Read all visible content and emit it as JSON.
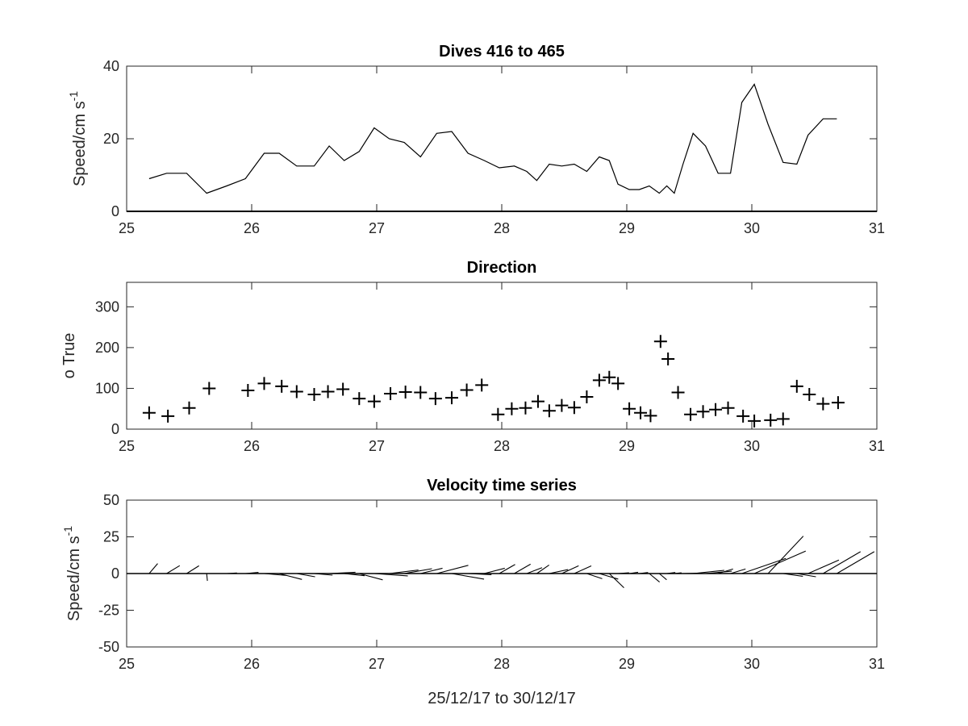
{
  "chart_data": [
    {
      "type": "line",
      "title": "Dives 416 to 465",
      "ylabel_main": "Speed/cm s",
      "ylabel_sup": "-1",
      "xlabel": "",
      "xlim": [
        25,
        31
      ],
      "ylim": [
        0,
        40
      ],
      "xticks": [
        25,
        26,
        27,
        28,
        29,
        30,
        31
      ],
      "yticks": [
        0,
        20,
        40
      ],
      "series": [
        {
          "x": [
            25.18,
            25.32,
            25.48,
            25.64,
            25.8,
            25.95,
            26.1,
            26.22,
            26.36,
            26.5,
            26.62,
            26.74,
            26.86,
            26.98,
            27.1,
            27.22,
            27.35,
            27.48,
            27.6,
            27.73,
            27.86,
            27.98,
            28.1,
            28.2,
            28.28,
            28.38,
            28.48,
            28.58,
            28.68,
            28.78,
            28.86,
            28.93,
            29.02,
            29.1,
            29.18,
            29.26,
            29.32,
            29.38,
            29.45,
            29.53,
            29.63,
            29.73,
            29.83,
            29.92,
            30.02,
            30.13,
            30.25,
            30.36,
            30.45,
            30.57,
            30.68
          ],
          "y": [
            9,
            10.5,
            10.5,
            5,
            7,
            9,
            16,
            16,
            12.5,
            12.5,
            18,
            14,
            16.5,
            23,
            20,
            19,
            15,
            21.5,
            22,
            16,
            14,
            12,
            12.5,
            11,
            8.5,
            13,
            12.5,
            13,
            11,
            15,
            14,
            7.5,
            6,
            6,
            7,
            5,
            7,
            5,
            13,
            21.5,
            18,
            10.5,
            10.5,
            30,
            35,
            24,
            13.5,
            13,
            21,
            25.5,
            25.5
          ]
        }
      ]
    },
    {
      "type": "scatter",
      "title": "Direction",
      "ylabel": "o True",
      "xlim": [
        25,
        31
      ],
      "ylim": [
        0,
        360
      ],
      "xticks": [
        25,
        26,
        27,
        28,
        29,
        30,
        31
      ],
      "yticks": [
        0,
        100,
        200,
        300
      ],
      "marker": "+",
      "x": [
        25.18,
        25.33,
        25.5,
        25.66,
        25.97,
        26.1,
        26.24,
        26.36,
        26.5,
        26.61,
        26.73,
        26.86,
        26.98,
        27.11,
        27.23,
        27.35,
        27.47,
        27.6,
        27.72,
        27.84,
        27.97,
        28.08,
        28.19,
        28.29,
        28.38,
        28.48,
        28.58,
        28.68,
        28.78,
        28.86,
        28.93,
        29.02,
        29.11,
        29.19,
        29.27,
        29.33,
        29.41,
        29.51,
        29.61,
        29.71,
        29.81,
        29.93,
        30.02,
        30.15,
        30.25,
        30.36,
        30.46,
        30.57,
        30.69
      ],
      "y": [
        40,
        32,
        52,
        100,
        95,
        112,
        105,
        92,
        85,
        92,
        98,
        75,
        68,
        87,
        91,
        90,
        75,
        77,
        96,
        108,
        36,
        50,
        52,
        68,
        45,
        58,
        53,
        79,
        120,
        127,
        112,
        50,
        40,
        33,
        215,
        172,
        90,
        36,
        43,
        48,
        52,
        32,
        20,
        22,
        25,
        105,
        85,
        62,
        65
      ]
    },
    {
      "type": "quiver",
      "title": "Velocity time series",
      "ylabel_main": "Speed/cm s",
      "ylabel_sup": "-1",
      "xlabel": "25/12/17 to 30/12/17",
      "xlim": [
        25,
        31
      ],
      "ylim": [
        -50,
        50
      ],
      "xticks": [
        25,
        26,
        27,
        28,
        29,
        30,
        31
      ],
      "yticks": [
        -50,
        -25,
        0,
        25,
        50
      ],
      "u": [
        5.8,
        8.9,
        8.4,
        0.5,
        7,
        8.9,
        15,
        15.5,
        12.5,
        12.5,
        17.9,
        13.9,
        16,
        22.9,
        19.9,
        18.9,
        15,
        21.5,
        22,
        16,
        14,
        10.8,
        11.1,
        10.4,
        8.4,
        12.8,
        11.5,
        11.6,
        10.5,
        12.9,
        10,
        7.5,
        6,
        6,
        7,
        5,
        5.8,
        4.9,
        13,
        21.3,
        17.9,
        10.2,
        10.2,
        30,
        35,
        24,
        13.5,
        13,
        21,
        25.5,
        25.5
      ],
      "v": [
        6.8,
        5.4,
        5.3,
        -5,
        0.4,
        0.8,
        -1.3,
        -4,
        -2.2,
        -1.1,
        0.9,
        -1.5,
        -4.3,
        -1.6,
        2.4,
        3.3,
        3.6,
        5.6,
        -3.8,
        -0.8,
        3.6,
        6.2,
        6.4,
        4.0,
        5.8,
        2.7,
        5.3,
        5.2,
        -3.5,
        -3.8,
        -9.7,
        0.5,
        0.9,
        0.7,
        -5.8,
        -4.2,
        0.7,
        0.5,
        0.3,
        2.2,
        1.6,
        3.1,
        3.1,
        10.3,
        15.3,
        25.5,
        -1.9,
        -2.2,
        9.2,
        14.9,
        14.9
      ]
    }
  ]
}
